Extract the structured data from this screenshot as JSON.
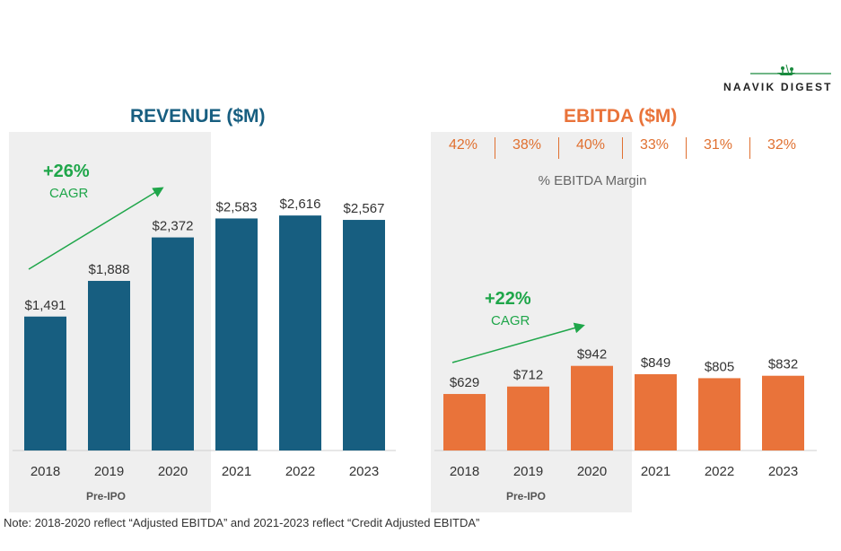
{
  "brand": {
    "name": "NAAVIK DIGEST"
  },
  "colors": {
    "revenue": "#175e80",
    "ebitda": "#e9733a",
    "cagr": "#1fa64a",
    "margin": "#e07030",
    "title_revenue": "#175e80",
    "title_ebitda": "#e9733a"
  },
  "footnote": "Note: 2018-2020 reflect “Adjusted EBITDA” and 2021-2023 reflect “Credit Adjusted EBITDA”",
  "chart_data": [
    {
      "type": "bar",
      "title": "REVENUE ($M)",
      "categories": [
        "2018",
        "2019",
        "2020",
        "2021",
        "2022",
        "2023"
      ],
      "values": [
        1491,
        1888,
        2372,
        2583,
        2616,
        2567
      ],
      "value_labels": [
        "$1,491",
        "$1,888",
        "$2,372",
        "$2,583",
        "$2,616",
        "$2,567"
      ],
      "ylim": [
        0,
        3200
      ],
      "grid": false,
      "annotations": {
        "cagr_value": "+26%",
        "cagr_label": "CAGR",
        "shaded_label": "Pre-IPO",
        "shaded_categories": [
          "2018",
          "2019",
          "2020"
        ]
      }
    },
    {
      "type": "bar",
      "title": "EBITDA ($M)",
      "categories": [
        "2018",
        "2019",
        "2020",
        "2021",
        "2022",
        "2023"
      ],
      "values": [
        629,
        712,
        942,
        849,
        805,
        832
      ],
      "value_labels": [
        "$629",
        "$712",
        "$942",
        "$849",
        "$805",
        "$832"
      ],
      "margins": [
        "42%",
        "38%",
        "40%",
        "33%",
        "31%",
        "32%"
      ],
      "margin_label": "% EBITDA Margin",
      "ylim": [
        0,
        3200
      ],
      "grid": false,
      "annotations": {
        "cagr_value": "+22%",
        "cagr_label": "CAGR",
        "shaded_label": "Pre-IPO",
        "shaded_categories": [
          "2018",
          "2019",
          "2020"
        ]
      }
    }
  ]
}
